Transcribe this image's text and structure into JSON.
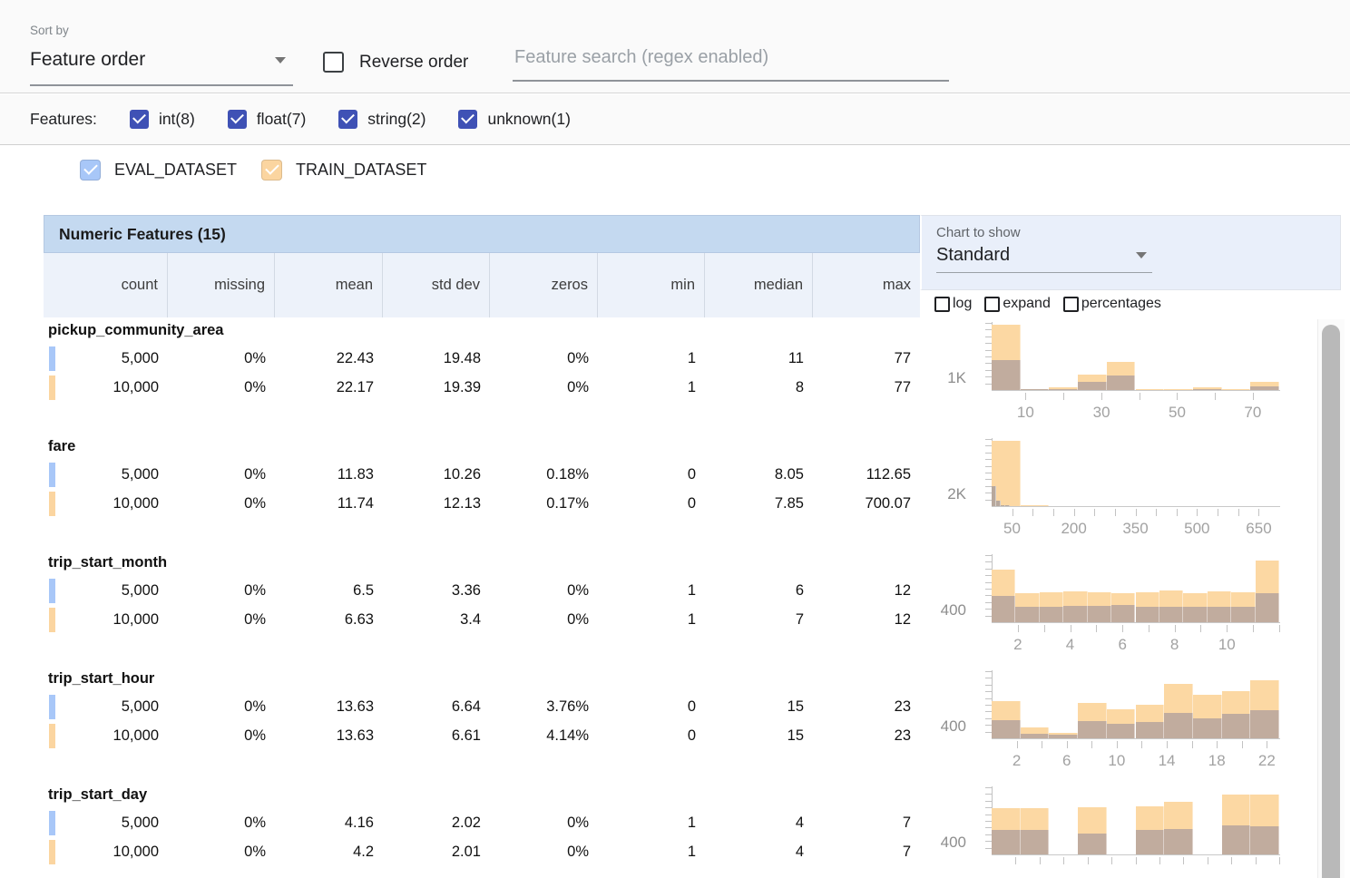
{
  "toolbar": {
    "sort_by_label": "Sort by",
    "sort_by_value": "Feature order",
    "reverse_order_label": "Reverse order",
    "search_placeholder": "Feature search (regex enabled)"
  },
  "features_filter": {
    "label": "Features:",
    "checkbox_color": "#3f51b5",
    "items": [
      {
        "type": "int",
        "label": "int(8)",
        "checked": true
      },
      {
        "type": "float",
        "label": "float(7)",
        "checked": true
      },
      {
        "type": "string",
        "label": "string(2)",
        "checked": true
      },
      {
        "type": "unknown",
        "label": "unknown(1)",
        "checked": true
      }
    ]
  },
  "datasets": [
    {
      "name": "EVAL_DATASET",
      "color": "#a8c7f8",
      "checked": true
    },
    {
      "name": "TRAIN_DATASET",
      "color": "#fbd5a0",
      "checked": true
    }
  ],
  "chart_controls": {
    "label": "Chart to show",
    "selected": "Standard",
    "checkboxes": [
      {
        "label": "log",
        "checked": false
      },
      {
        "label": "expand",
        "checked": false
      },
      {
        "label": "percentages",
        "checked": false
      }
    ]
  },
  "table": {
    "title": "Numeric Features (15)",
    "columns": [
      "count",
      "missing",
      "mean",
      "std dev",
      "zeros",
      "min",
      "median",
      "max"
    ],
    "features": [
      {
        "name": "pickup_community_area",
        "rows": [
          {
            "dataset": "EVAL_DATASET",
            "values": [
              "5,000",
              "0%",
              "22.43",
              "19.48",
              "0%",
              "1",
              "11",
              "77"
            ]
          },
          {
            "dataset": "TRAIN_DATASET",
            "values": [
              "10,000",
              "0%",
              "22.17",
              "19.39",
              "0%",
              "1",
              "8",
              "77"
            ]
          }
        ]
      },
      {
        "name": "fare",
        "rows": [
          {
            "dataset": "EVAL_DATASET",
            "values": [
              "5,000",
              "0%",
              "11.83",
              "10.26",
              "0.18%",
              "0",
              "8.05",
              "112.65"
            ]
          },
          {
            "dataset": "TRAIN_DATASET",
            "values": [
              "10,000",
              "0%",
              "11.74",
              "12.13",
              "0.17%",
              "0",
              "7.85",
              "700.07"
            ]
          }
        ]
      },
      {
        "name": "trip_start_month",
        "rows": [
          {
            "dataset": "EVAL_DATASET",
            "values": [
              "5,000",
              "0%",
              "6.5",
              "3.36",
              "0%",
              "1",
              "6",
              "12"
            ]
          },
          {
            "dataset": "TRAIN_DATASET",
            "values": [
              "10,000",
              "0%",
              "6.63",
              "3.4",
              "0%",
              "1",
              "7",
              "12"
            ]
          }
        ]
      },
      {
        "name": "trip_start_hour",
        "rows": [
          {
            "dataset": "EVAL_DATASET",
            "values": [
              "5,000",
              "0%",
              "13.63",
              "6.64",
              "3.76%",
              "0",
              "15",
              "23"
            ]
          },
          {
            "dataset": "TRAIN_DATASET",
            "values": [
              "10,000",
              "0%",
              "13.63",
              "6.61",
              "4.14%",
              "0",
              "15",
              "23"
            ]
          }
        ]
      },
      {
        "name": "trip_start_day",
        "rows": [
          {
            "dataset": "EVAL_DATASET",
            "values": [
              "5,000",
              "0%",
              "4.16",
              "2.02",
              "0%",
              "1",
              "4",
              "7"
            ]
          },
          {
            "dataset": "TRAIN_DATASET",
            "values": [
              "10,000",
              "0%",
              "4.2",
              "2.01",
              "0%",
              "1",
              "4",
              "7"
            ]
          }
        ]
      }
    ]
  },
  "chart_data": [
    {
      "feature": "pickup_community_area",
      "type": "histogram",
      "nbins": 10,
      "x_range": [
        1,
        77
      ],
      "y_tick_label": "1K",
      "xticks": [
        {
          "p": 0.118,
          "label": "10"
        },
        {
          "p": 0.25,
          "label": ""
        },
        {
          "p": 0.382,
          "label": "30"
        },
        {
          "p": 0.513,
          "label": ""
        },
        {
          "p": 0.645,
          "label": "50"
        },
        {
          "p": 0.776,
          "label": ""
        },
        {
          "p": 0.908,
          "label": "70"
        }
      ],
      "series": [
        {
          "name": "TRAIN_DATASET",
          "color": "#fcd8a3",
          "heights": [
            1,
            0.02,
            0.04,
            0.24,
            0.43,
            0.01,
            0.01,
            0.04,
            0.01,
            0.12
          ],
          "approx_counts": [
            5210,
            105,
            210,
            1250,
            2240,
            52,
            52,
            210,
            52,
            625
          ]
        },
        {
          "name": "EVAL_DATASET",
          "color": "#c1ac9e",
          "heights": [
            0.46,
            0.01,
            0.02,
            0.12,
            0.22,
            0,
            0,
            0.02,
            0,
            0.06
          ],
          "approx_counts": [
            2490,
            54,
            108,
            650,
            1190,
            27,
            27,
            108,
            27,
            324
          ]
        }
      ]
    },
    {
      "feature": "fare",
      "type": "histogram",
      "nbins": 10,
      "x_range": [
        0,
        700.07
      ],
      "y_tick_label": "2K",
      "xticks": [
        {
          "p": 0.071,
          "label": "50"
        },
        {
          "p": 0.143,
          "label": ""
        },
        {
          "p": 0.214,
          "label": ""
        },
        {
          "p": 0.286,
          "label": "200"
        },
        {
          "p": 0.357,
          "label": ""
        },
        {
          "p": 0.429,
          "label": ""
        },
        {
          "p": 0.5,
          "label": "350"
        },
        {
          "p": 0.571,
          "label": ""
        },
        {
          "p": 0.643,
          "label": ""
        },
        {
          "p": 0.714,
          "label": "500"
        },
        {
          "p": 0.786,
          "label": ""
        },
        {
          "p": 0.857,
          "label": ""
        },
        {
          "p": 0.929,
          "label": "650"
        }
      ],
      "series": [
        {
          "name": "TRAIN_DATASET",
          "color": "#fcd8a3",
          "heights": [
            1,
            0.01,
            0,
            0,
            0,
            0,
            0,
            0,
            0,
            0
          ],
          "approx_counts": [
            9900,
            40,
            20,
            10,
            5,
            3,
            2,
            2,
            2,
            16
          ]
        },
        {
          "name": "EVAL_DATASET",
          "color": "#b7a89d",
          "bin_width_ratio": 0.161,
          "x_range": [
            0,
            112.65
          ],
          "heights": [
            0.3,
            0.08,
            0.02,
            0.01,
            0,
            0,
            0,
            0,
            0,
            0
          ],
          "approx_counts": [
            3620,
            966,
            242,
            121,
            48,
            1,
            1,
            1,
            0,
            0
          ]
        }
      ]
    },
    {
      "feature": "trip_start_month",
      "type": "histogram",
      "nbins": 12,
      "x_range": [
        1,
        12
      ],
      "y_tick_label": "400",
      "xticks": [
        {
          "p": 0.091,
          "label": "2"
        },
        {
          "p": 0.182,
          "label": ""
        },
        {
          "p": 0.273,
          "label": "4"
        },
        {
          "p": 0.364,
          "label": ""
        },
        {
          "p": 0.455,
          "label": "6"
        },
        {
          "p": 0.545,
          "label": ""
        },
        {
          "p": 0.636,
          "label": "8"
        },
        {
          "p": 0.727,
          "label": ""
        },
        {
          "p": 0.818,
          "label": "10"
        },
        {
          "p": 0.909,
          "label": ""
        },
        {
          "p": 1.0,
          "label": ""
        }
      ],
      "series": [
        {
          "name": "TRAIN_DATASET",
          "color": "#fcd8a3",
          "heights": [
            0.8,
            0.45,
            0.46,
            0.47,
            0.46,
            0.45,
            0.46,
            0.48,
            0.44,
            0.47,
            0.46,
            0.95
          ],
          "approx_counts": [
            1260,
            710,
            725,
            740,
            725,
            710,
            725,
            755,
            695,
            740,
            725,
            1495
          ]
        },
        {
          "name": "EVAL_DATASET",
          "color": "#c1ac9e",
          "heights": [
            0.4,
            0.24,
            0.24,
            0.25,
            0.25,
            0.26,
            0.24,
            0.24,
            0.24,
            0.24,
            0.24,
            0.44
          ],
          "approx_counts": [
            610,
            365,
            365,
            380,
            380,
            395,
            365,
            365,
            365,
            365,
            365,
            670
          ]
        }
      ]
    },
    {
      "feature": "trip_start_hour",
      "type": "histogram",
      "nbins": 10,
      "x_range": [
        0,
        23
      ],
      "y_tick_label": "400",
      "xticks": [
        {
          "p": 0.087,
          "label": "2"
        },
        {
          "p": 0.174,
          "label": ""
        },
        {
          "p": 0.261,
          "label": "6"
        },
        {
          "p": 0.348,
          "label": ""
        },
        {
          "p": 0.435,
          "label": "10"
        },
        {
          "p": 0.522,
          "label": ""
        },
        {
          "p": 0.609,
          "label": "14"
        },
        {
          "p": 0.696,
          "label": ""
        },
        {
          "p": 0.783,
          "label": "18"
        },
        {
          "p": 0.87,
          "label": ""
        },
        {
          "p": 0.957,
          "label": "22"
        }
      ],
      "series": [
        {
          "name": "TRAIN_DATASET",
          "color": "#fcd8a3",
          "heights": [
            0.57,
            0.17,
            0.08,
            0.54,
            0.45,
            0.52,
            0.83,
            0.66,
            0.72,
            0.89
          ],
          "approx_counts": [
            1050,
            310,
            150,
            990,
            830,
            960,
            1530,
            1220,
            1330,
            1640
          ]
        },
        {
          "name": "EVAL_DATASET",
          "color": "#c1ac9e",
          "heights": [
            0.28,
            0.07,
            0.05,
            0.26,
            0.22,
            0.25,
            0.39,
            0.31,
            0.37,
            0.43
          ],
          "approx_counts": [
            530,
            130,
            95,
            495,
            420,
            475,
            740,
            590,
            705,
            820
          ]
        }
      ]
    },
    {
      "feature": "trip_start_day",
      "type": "histogram",
      "nbins": 10,
      "x_range": [
        1,
        7
      ],
      "y_tick_label": "400",
      "xticks": [
        {
          "p": 0.083,
          "label": ""
        },
        {
          "p": 0.167,
          "label": ""
        },
        {
          "p": 0.25,
          "label": ""
        },
        {
          "p": 0.333,
          "label": ""
        },
        {
          "p": 0.417,
          "label": ""
        },
        {
          "p": 0.5,
          "label": ""
        },
        {
          "p": 0.583,
          "label": ""
        },
        {
          "p": 0.667,
          "label": ""
        },
        {
          "p": 0.75,
          "label": ""
        },
        {
          "p": 0.833,
          "label": ""
        },
        {
          "p": 0.917,
          "label": ""
        },
        {
          "p": 1.0,
          "label": ""
        }
      ],
      "series": [
        {
          "name": "TRAIN_DATASET",
          "color": "#fcd8a3",
          "heights": [
            0.71,
            0.71,
            0,
            0.72,
            0,
            0.74,
            0.8,
            0,
            0.92,
            0.92
          ],
          "approx_counts": [
            1290,
            1290,
            0,
            1300,
            0,
            1340,
            1450,
            0,
            1670,
            1670
          ]
        },
        {
          "name": "EVAL_DATASET",
          "color": "#c1ac9e",
          "heights": [
            0.38,
            0.37,
            0,
            0.32,
            0,
            0.37,
            0.39,
            0,
            0.44,
            0.43
          ],
          "approx_counts": [
            705,
            685,
            0,
            595,
            0,
            685,
            720,
            0,
            815,
            795
          ]
        }
      ]
    }
  ],
  "icons": {
    "dropdown_arrow": "triangle-down",
    "checkmark": "check"
  }
}
